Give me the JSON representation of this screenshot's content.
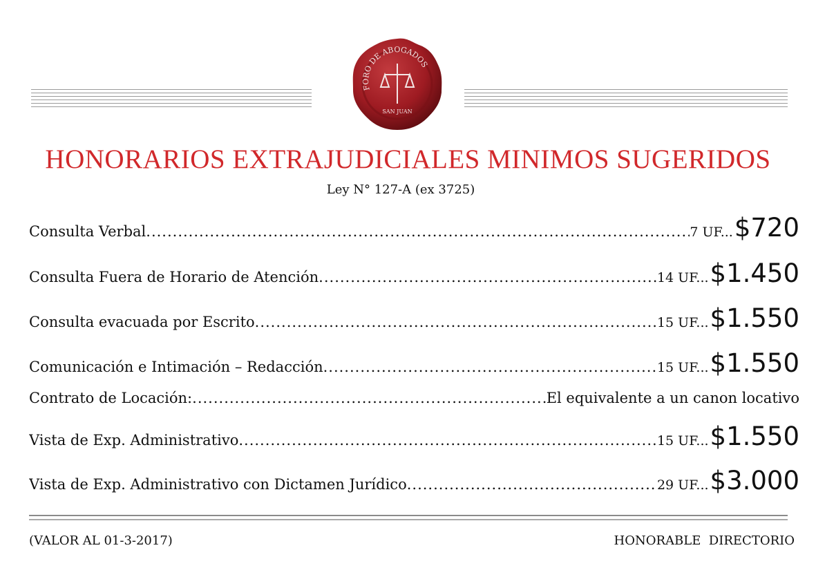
{
  "seal": {
    "text_top": "FORO DE ABOGADOS",
    "text_bottom": "SAN JUAN",
    "color": "#9e1b22"
  },
  "title": "HONORARIOS EXTRAJUDICIALES MINIMOS SUGERIDOS",
  "subtitle": "Ley N° 127-A (ex 3725)",
  "accent_color": "#d1282b",
  "items": [
    {
      "label": "Consulta Verbal ",
      "uf": "7 UF...",
      "price": "$720"
    },
    {
      "label": "Consulta Fuera de Horario de Atención",
      "uf": "14 UF...",
      "price": "$1.450"
    },
    {
      "label": "Consulta evacuada por Escrito ",
      "uf": "15 UF...",
      "price": "$1.550"
    },
    {
      "label": "Comunicación e Intimación – Redacción ",
      "uf": "15 UF...",
      "price": "$1.550"
    },
    {
      "label": "Contrato de Locación: ",
      "equivalent": "El equivalente a un canon locativo"
    },
    {
      "label": "Vista de Exp. Administrativo ",
      "uf": "15 UF...",
      "price": "$1.550"
    },
    {
      "label": "Vista de Exp. Administrativo con Dictamen Jurídico",
      "uf": "29 UF...",
      "price": "$3.000"
    }
  ],
  "footer": {
    "left": "(VALOR AL 01-3-2017)",
    "right": "HONORABLE  DIRECTORIO"
  }
}
